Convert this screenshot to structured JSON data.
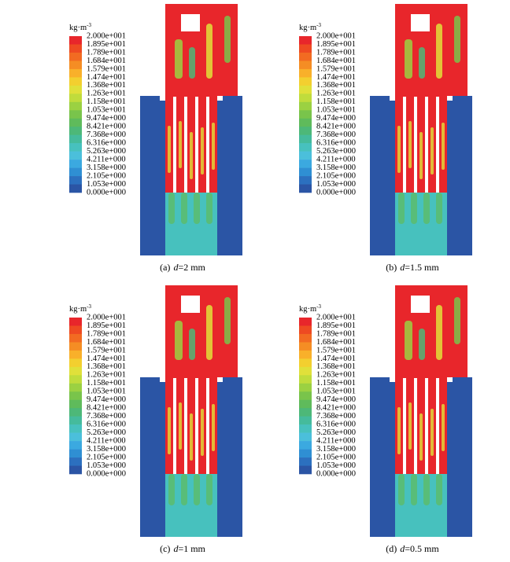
{
  "legend": {
    "unit": "kg·m",
    "unit_exponent": "-3",
    "labels": [
      "2.000e+001",
      "1.895e+001",
      "1.789e+001",
      "1.684e+001",
      "1.579e+001",
      "1.474e+001",
      "1.368e+001",
      "1.263e+001",
      "1.158e+001",
      "1.053e+001",
      "9.474e+000",
      "8.421e+000",
      "7.368e+000",
      "6.316e+000",
      "5.263e+000",
      "4.211e+000",
      "3.158e+000",
      "2.105e+000",
      "1.053e+000",
      "0.000e+000"
    ],
    "colors": [
      "#e8262b",
      "#ee4a22",
      "#f26b22",
      "#f58d24",
      "#f9b02a",
      "#f3cf2f",
      "#e0e03a",
      "#c0dc3c",
      "#9bd142",
      "#79c44b",
      "#5fbb5b",
      "#4db878",
      "#45bb9c",
      "#47c1be",
      "#4bbfdb",
      "#3ba9e0",
      "#2f8fd3",
      "#2c70bf",
      "#2b55a5"
    ]
  },
  "panels": [
    {
      "label": "(a)",
      "symbol": "d",
      "value": "=2 mm"
    },
    {
      "label": "(b)",
      "symbol": "d",
      "value": "=1.5 mm"
    },
    {
      "label": "(c)",
      "symbol": "d",
      "value": "=1 mm"
    },
    {
      "label": "(d)",
      "symbol": "d",
      "value": "=0.5 mm"
    }
  ]
}
